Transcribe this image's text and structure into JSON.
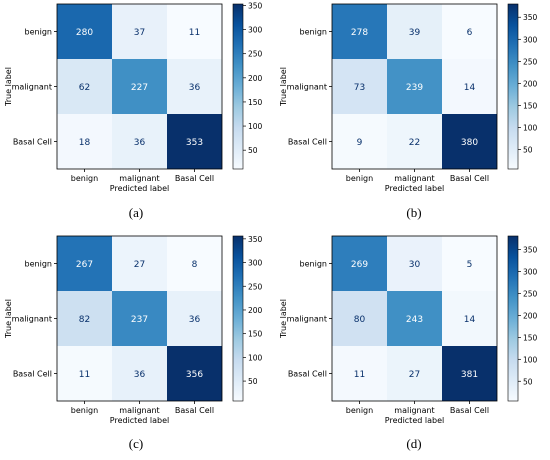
{
  "colormap": {
    "name": "Blues",
    "stops": [
      "#f7fbff",
      "#deebf7",
      "#c6dbef",
      "#9ecae1",
      "#6baed6",
      "#4292c6",
      "#2171b5",
      "#08519c",
      "#08306b"
    ]
  },
  "text_colors": {
    "dark_cell": "#ffffff",
    "light_cell": "#08306b"
  },
  "chart_data": [
    {
      "type": "heatmap",
      "caption": "(a)",
      "xlabel": "Predicted label",
      "ylabel": "True label",
      "x_categories": [
        "benign",
        "malignant",
        "Basal Cell"
      ],
      "y_categories": [
        "benign",
        "malignant",
        "Basal Cell"
      ],
      "matrix": [
        [
          280,
          37,
          11
        ],
        [
          62,
          227,
          36
        ],
        [
          18,
          36,
          353
        ]
      ],
      "colorbar_ticks": [
        50,
        100,
        150,
        200,
        250,
        300,
        350
      ],
      "colorbar_range": [
        11,
        353
      ]
    },
    {
      "type": "heatmap",
      "caption": "(b)",
      "xlabel": "Predicted label",
      "ylabel": "True label",
      "x_categories": [
        "benign",
        "malignant",
        "Basal Cell"
      ],
      "y_categories": [
        "benign",
        "malignant",
        "Basal Cell"
      ],
      "matrix": [
        [
          278,
          39,
          6
        ],
        [
          73,
          239,
          14
        ],
        [
          9,
          22,
          380
        ]
      ],
      "colorbar_ticks": [
        50,
        100,
        150,
        200,
        250,
        300,
        350
      ],
      "colorbar_range": [
        6,
        380
      ]
    },
    {
      "type": "heatmap",
      "caption": "(c)",
      "xlabel": "Predicted label",
      "ylabel": "True label",
      "x_categories": [
        "benign",
        "malignant",
        "Basal Cell"
      ],
      "y_categories": [
        "benign",
        "malignant",
        "Basal Cell"
      ],
      "matrix": [
        [
          267,
          27,
          8
        ],
        [
          82,
          237,
          36
        ],
        [
          11,
          36,
          356
        ]
      ],
      "colorbar_ticks": [
        50,
        100,
        150,
        200,
        250,
        300,
        350
      ],
      "colorbar_range": [
        8,
        356
      ]
    },
    {
      "type": "heatmap",
      "caption": "(d)",
      "xlabel": "Predicted label",
      "ylabel": "True label",
      "x_categories": [
        "benign",
        "malignant",
        "Basal Cell"
      ],
      "y_categories": [
        "benign",
        "malignant",
        "Basal Cell"
      ],
      "matrix": [
        [
          269,
          30,
          5
        ],
        [
          80,
          243,
          14
        ],
        [
          11,
          27,
          381
        ]
      ],
      "colorbar_ticks": [
        50,
        100,
        150,
        200,
        250,
        300,
        350
      ],
      "colorbar_range": [
        5,
        381
      ]
    }
  ]
}
